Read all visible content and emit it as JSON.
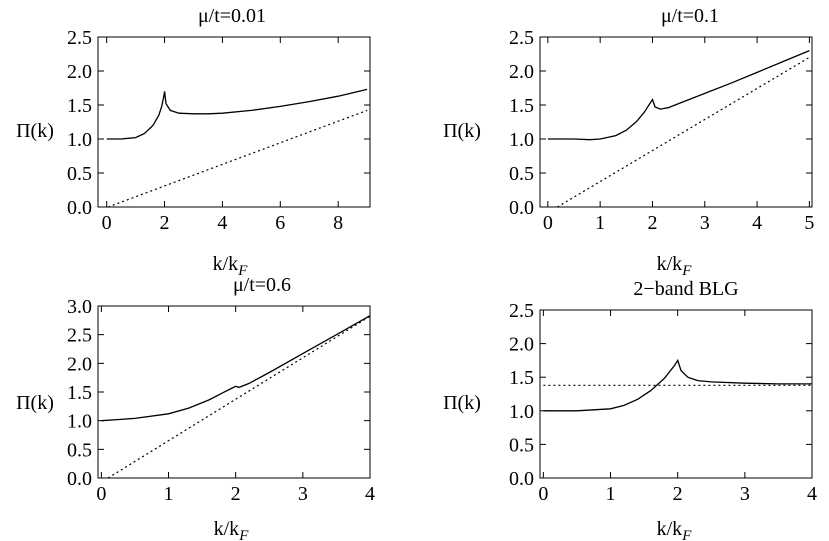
{
  "chart_data": [
    {
      "type": "line",
      "title": "μ/t=0.01",
      "xlabel": "k/k_F",
      "ylabel": "Π(k)",
      "xlim": [
        -0.3,
        9.1
      ],
      "ylim": [
        0,
        2.5
      ],
      "xticks": [
        0,
        2,
        4,
        6,
        8
      ],
      "yticks": [
        0.0,
        0.5,
        1.0,
        1.5,
        2.0,
        2.5
      ],
      "xtick_labels": [
        "0",
        "2",
        "4",
        "6",
        "8"
      ],
      "ytick_labels": [
        "0.0",
        "0.5",
        "1.0",
        "1.5",
        "2.0",
        "2.5"
      ],
      "series": [
        {
          "style": "solid",
          "x": [
            0,
            0.5,
            1.0,
            1.3,
            1.6,
            1.8,
            1.9,
            1.97,
            2.0,
            2.05,
            2.2,
            2.5,
            3.0,
            3.5,
            4.0,
            5.0,
            6.0,
            7.0,
            8.0,
            9.0
          ],
          "y": [
            1.0,
            1.0,
            1.02,
            1.08,
            1.2,
            1.35,
            1.48,
            1.62,
            1.7,
            1.52,
            1.42,
            1.38,
            1.37,
            1.37,
            1.38,
            1.42,
            1.48,
            1.55,
            1.63,
            1.73
          ]
        },
        {
          "style": "dotted",
          "x": [
            0.05,
            9.0
          ],
          "y": [
            0.0,
            1.42
          ]
        }
      ]
    },
    {
      "type": "line",
      "title": "μ/t=0.1",
      "xlabel": "k/k_F",
      "ylabel": "Π(k)",
      "xlim": [
        -0.15,
        5.05
      ],
      "ylim": [
        0,
        2.5
      ],
      "xticks": [
        0,
        1,
        2,
        3,
        4,
        5
      ],
      "yticks": [
        0.0,
        0.5,
        1.0,
        1.5,
        2.0,
        2.5
      ],
      "xtick_labels": [
        "0",
        "1",
        "2",
        "3",
        "4",
        "5"
      ],
      "ytick_labels": [
        "0.0",
        "0.5",
        "1.0",
        "1.5",
        "2.0",
        "2.5"
      ],
      "series": [
        {
          "style": "solid",
          "x": [
            0,
            0.5,
            0.8,
            1.0,
            1.3,
            1.5,
            1.7,
            1.85,
            1.95,
            2.0,
            2.05,
            2.15,
            2.3,
            2.5,
            3.0,
            3.5,
            4.0,
            4.5,
            5.0
          ],
          "y": [
            1.0,
            1.0,
            0.99,
            1.0,
            1.05,
            1.13,
            1.26,
            1.4,
            1.52,
            1.58,
            1.47,
            1.44,
            1.46,
            1.52,
            1.67,
            1.82,
            1.98,
            2.14,
            2.3
          ]
        },
        {
          "style": "dotted",
          "x": [
            0.18,
            5.0
          ],
          "y": [
            0.0,
            2.2
          ]
        }
      ]
    },
    {
      "type": "line",
      "title": "μ/t=0.6",
      "xlabel": "k/k_F",
      "ylabel": "Π(k)",
      "xlim": [
        -0.05,
        4.0
      ],
      "ylim": [
        0,
        3.0
      ],
      "xticks": [
        0,
        1,
        2,
        3,
        4
      ],
      "yticks": [
        0.0,
        0.5,
        1.0,
        1.5,
        2.0,
        2.5,
        3.0
      ],
      "xtick_labels": [
        "0",
        "1",
        "2",
        "3",
        "4"
      ],
      "ytick_labels": [
        "0.0",
        "0.5",
        "1.0",
        "1.5",
        "2.0",
        "2.5",
        "3.0"
      ],
      "series": [
        {
          "style": "solid",
          "x": [
            0,
            0.5,
            1.0,
            1.3,
            1.6,
            1.8,
            1.95,
            2.0,
            2.05,
            2.2,
            2.5,
            3.0,
            3.5,
            4.0
          ],
          "y": [
            1.0,
            1.04,
            1.12,
            1.22,
            1.36,
            1.48,
            1.57,
            1.6,
            1.58,
            1.65,
            1.84,
            2.17,
            2.5,
            2.83
          ]
        },
        {
          "style": "dotted",
          "x": [
            0.1,
            4.0
          ],
          "y": [
            0.0,
            2.82
          ]
        }
      ]
    },
    {
      "type": "line",
      "title": "2−band BLG",
      "xlabel": "k/k_F",
      "ylabel": "Π(k)",
      "xlim": [
        -0.05,
        4.0
      ],
      "ylim": [
        0,
        2.5
      ],
      "xticks": [
        0,
        1,
        2,
        3,
        4
      ],
      "yticks": [
        0.0,
        0.5,
        1.0,
        1.5,
        2.0,
        2.5
      ],
      "xtick_labels": [
        "0",
        "1",
        "2",
        "3",
        "4"
      ],
      "ytick_labels": [
        "0.0",
        "0.5",
        "1.0",
        "1.5",
        "2.0",
        "2.5"
      ],
      "series": [
        {
          "style": "solid",
          "x": [
            0,
            0.5,
            1.0,
            1.2,
            1.4,
            1.6,
            1.8,
            1.95,
            2.0,
            2.05,
            2.15,
            2.3,
            2.5,
            3.0,
            3.5,
            4.0
          ],
          "y": [
            1.0,
            1.0,
            1.03,
            1.08,
            1.17,
            1.3,
            1.48,
            1.67,
            1.75,
            1.6,
            1.5,
            1.45,
            1.43,
            1.41,
            1.4,
            1.4
          ]
        },
        {
          "style": "dotted",
          "x": [
            0.0,
            4.0
          ],
          "y": [
            1.38,
            1.38
          ]
        }
      ]
    }
  ]
}
